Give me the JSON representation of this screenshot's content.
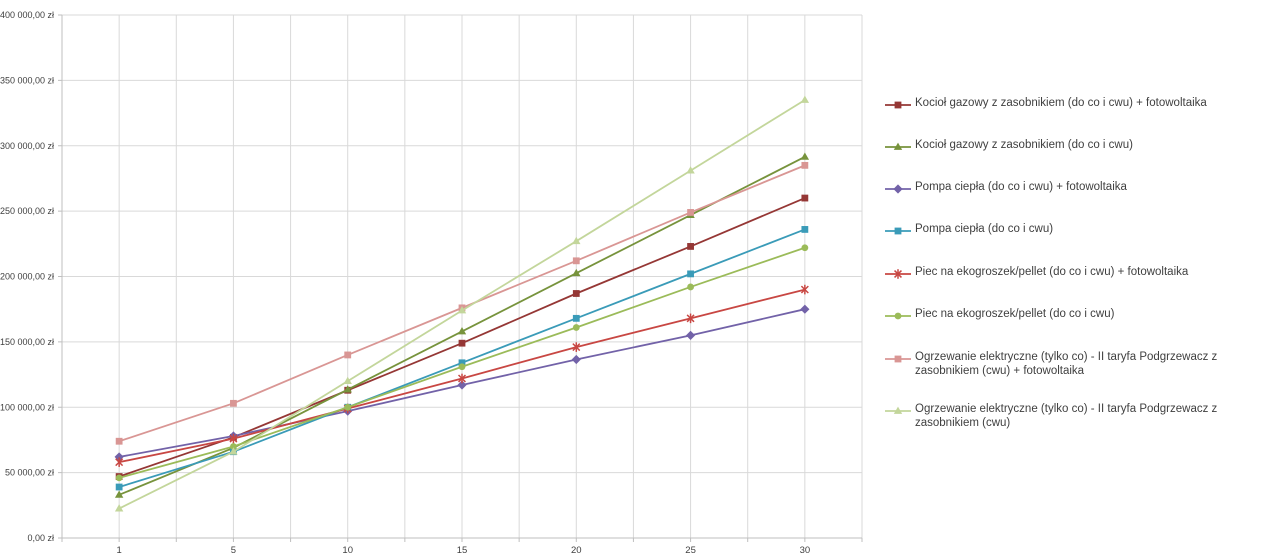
{
  "chart_data": {
    "type": "line",
    "title": "",
    "xlabel": "",
    "ylabel": "",
    "x_unit": "years",
    "y_unit": "zł",
    "categories": [
      1,
      5,
      10,
      15,
      20,
      25,
      30
    ],
    "x_tick_labels": [
      "1",
      "5",
      "10",
      "15",
      "20",
      "25",
      "30"
    ],
    "ylim": [
      0,
      400000
    ],
    "y_tick_step": 50000,
    "y_tick_labels": [
      "0,00 zł",
      "50 000,00 zł",
      "100 000,00 zł",
      "150 000,00 zł",
      "200 000,00 zł",
      "250 000,00 zł",
      "300 000,00 zł",
      "350 000,00 zł",
      "400 000,00 zł"
    ],
    "grid": true,
    "legend_position": "right",
    "series": [
      {
        "name": "Kocioł gazowy z zasobnikiem (do co i cwu) + fotowoltaika",
        "color": "#953735",
        "marker": "square",
        "values": [
          47000,
          77000,
          113000,
          149000,
          187000,
          223000,
          260000
        ]
      },
      {
        "name": "Kocioł gazowy z zasobnikiem (do co i cwu)",
        "color": "#77933C",
        "marker": "triangle",
        "values": [
          33000,
          69000,
          113500,
          158000,
          202500,
          247000,
          291500
        ]
      },
      {
        "name": "Pompa ciepła (do co i cwu) + fotowoltaika",
        "color": "#7262A8",
        "marker": "diamond",
        "values": [
          62000,
          78000,
          97000,
          117000,
          136500,
          155000,
          175000
        ]
      },
      {
        "name": "Pompa ciepła (do co i cwu)",
        "color": "#3A9BB8",
        "marker": "square",
        "values": [
          39000,
          66000,
          100000,
          134000,
          168000,
          202000,
          236000
        ]
      },
      {
        "name": "Piec na ekogroszek/pellet (do co i cwu) + fotowoltaika",
        "color": "#C84743",
        "marker": "star",
        "values": [
          58000,
          76000,
          99000,
          122000,
          146000,
          168000,
          190000
        ]
      },
      {
        "name": "Piec na ekogroszek/pellet (do co i cwu)",
        "color": "#9BBB59",
        "marker": "circle",
        "values": [
          46000,
          70000,
          100000,
          131000,
          161000,
          192000,
          222000
        ]
      },
      {
        "name": "Ogrzewanie elektryczne (tylko co) - II taryfa Podgrzewacz z zasobnikiem (cwu) + fotowoltaika",
        "color": "#D99694",
        "marker": "square",
        "values": [
          74000,
          103000,
          140000,
          176000,
          212000,
          249000,
          285000
        ]
      },
      {
        "name": "Ogrzewanie elektryczne (tylko co) - II taryfa Podgrzewacz z zasobnikiem (cwu)",
        "color": "#C3D69B",
        "marker": "triangle",
        "values": [
          22500,
          66000,
          120000,
          174000,
          227000,
          281000,
          335000
        ]
      }
    ],
    "colors": {
      "gridline": "#D9D9D9",
      "axis": "#BFBFBF",
      "tick_text": "#404040",
      "legend_text": "#3F3F3F",
      "background": "#FFFFFF"
    }
  }
}
